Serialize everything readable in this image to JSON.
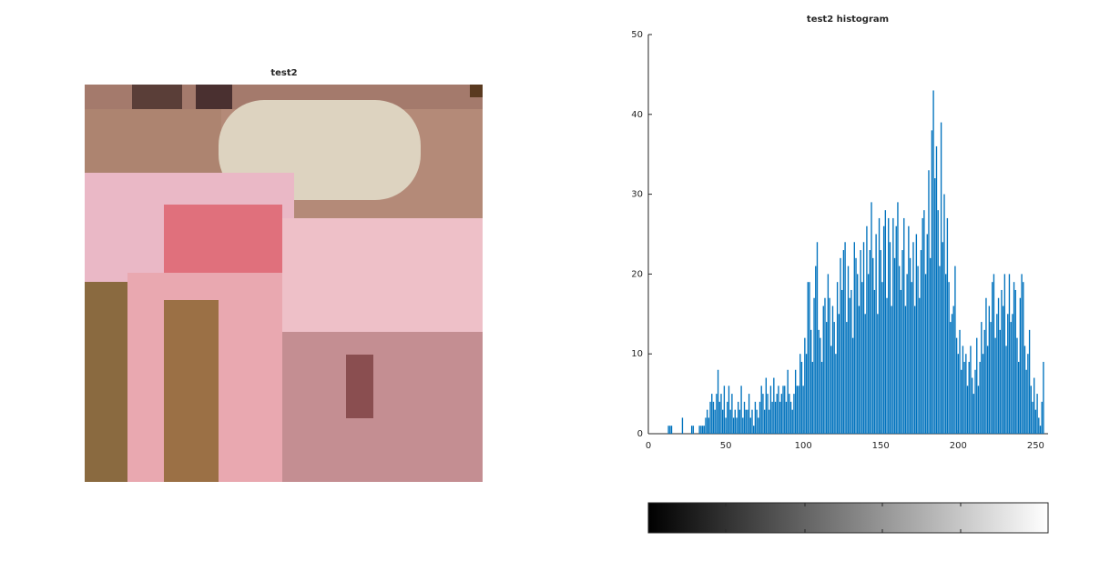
{
  "image_title": "test2",
  "chart_data": {
    "type": "bar",
    "title": "test2 histogram",
    "x": [
      0,
      1,
      2,
      3,
      4,
      5,
      6,
      7,
      8,
      9,
      10,
      11,
      12,
      13,
      14,
      15,
      16,
      17,
      18,
      19,
      20,
      21,
      22,
      23,
      24,
      25,
      26,
      27,
      28,
      29,
      30,
      31,
      32,
      33,
      34,
      35,
      36,
      37,
      38,
      39,
      40,
      41,
      42,
      43,
      44,
      45,
      46,
      47,
      48,
      49,
      50,
      51,
      52,
      53,
      54,
      55,
      56,
      57,
      58,
      59,
      60,
      61,
      62,
      63,
      64,
      65,
      66,
      67,
      68,
      69,
      70,
      71,
      72,
      73,
      74,
      75,
      76,
      77,
      78,
      79,
      80,
      81,
      82,
      83,
      84,
      85,
      86,
      87,
      88,
      89,
      90,
      91,
      92,
      93,
      94,
      95,
      96,
      97,
      98,
      99,
      100,
      101,
      102,
      103,
      104,
      105,
      106,
      107,
      108,
      109,
      110,
      111,
      112,
      113,
      114,
      115,
      116,
      117,
      118,
      119,
      120,
      121,
      122,
      123,
      124,
      125,
      126,
      127,
      128,
      129,
      130,
      131,
      132,
      133,
      134,
      135,
      136,
      137,
      138,
      139,
      140,
      141,
      142,
      143,
      144,
      145,
      146,
      147,
      148,
      149,
      150,
      151,
      152,
      153,
      154,
      155,
      156,
      157,
      158,
      159,
      160,
      161,
      162,
      163,
      164,
      165,
      166,
      167,
      168,
      169,
      170,
      171,
      172,
      173,
      174,
      175,
      176,
      177,
      178,
      179,
      180,
      181,
      182,
      183,
      184,
      185,
      186,
      187,
      188,
      189,
      190,
      191,
      192,
      193,
      194,
      195,
      196,
      197,
      198,
      199,
      200,
      201,
      202,
      203,
      204,
      205,
      206,
      207,
      208,
      209,
      210,
      211,
      212,
      213,
      214,
      215,
      216,
      217,
      218,
      219,
      220,
      221,
      222,
      223,
      224,
      225,
      226,
      227,
      228,
      229,
      230,
      231,
      232,
      233,
      234,
      235,
      236,
      237,
      238,
      239,
      240,
      241,
      242,
      243,
      244,
      245,
      246,
      247,
      248,
      249,
      250,
      251,
      252,
      253,
      254,
      255
    ],
    "values": [
      0,
      0,
      0,
      0,
      0,
      0,
      0,
      0,
      0,
      0,
      0,
      0,
      0,
      1,
      1,
      1,
      0,
      0,
      0,
      0,
      0,
      0,
      2,
      0,
      0,
      0,
      0,
      0,
      1,
      1,
      0,
      0,
      0,
      1,
      1,
      1,
      1,
      2,
      3,
      2,
      4,
      5,
      4,
      3,
      5,
      8,
      4,
      5,
      3,
      6,
      2,
      4,
      6,
      3,
      5,
      2,
      3,
      2,
      4,
      3,
      6,
      2,
      4,
      3,
      3,
      5,
      2,
      3,
      1,
      4,
      3,
      2,
      4,
      6,
      5,
      3,
      7,
      5,
      3,
      6,
      4,
      7,
      4,
      5,
      6,
      4,
      5,
      6,
      6,
      4,
      8,
      5,
      4,
      3,
      5,
      8,
      6,
      6,
      10,
      9,
      6,
      12,
      10,
      19,
      19,
      13,
      9,
      17,
      21,
      24,
      13,
      12,
      9,
      16,
      17,
      14,
      20,
      17,
      11,
      16,
      14,
      10,
      19,
      15,
      22,
      18,
      23,
      24,
      14,
      21,
      17,
      18,
      12,
      24,
      22,
      20,
      16,
      23,
      19,
      24,
      15,
      26,
      20,
      23,
      29,
      22,
      18,
      25,
      15,
      27,
      23,
      19,
      26,
      28,
      17,
      27,
      24,
      16,
      27,
      22,
      26,
      29,
      21,
      18,
      23,
      27,
      16,
      20,
      26,
      22,
      19,
      24,
      16,
      25,
      21,
      17,
      23,
      27,
      28,
      20,
      25,
      33,
      22,
      38,
      43,
      32,
      36,
      28,
      21,
      39,
      24,
      30,
      20,
      27,
      19,
      14,
      15,
      16,
      21,
      12,
      10,
      13,
      8,
      11,
      9,
      10,
      6,
      9,
      11,
      7,
      5,
      8,
      12,
      6,
      9,
      14,
      10,
      13,
      17,
      11,
      16,
      14,
      19,
      20,
      12,
      15,
      17,
      13,
      18,
      16,
      20,
      11,
      15,
      20,
      14,
      15,
      19,
      18,
      12,
      9,
      17,
      20,
      19,
      11,
      8,
      10,
      13,
      6,
      4,
      7,
      3,
      5,
      2,
      1,
      4,
      9
    ],
    "color": "#0072bd",
    "xlim": [
      0,
      258
    ],
    "xticks": [
      0,
      50,
      100,
      150,
      200,
      250
    ],
    "ylim": [
      0,
      50
    ],
    "yticks": [
      0,
      10,
      20,
      30,
      40,
      50
    ]
  }
}
